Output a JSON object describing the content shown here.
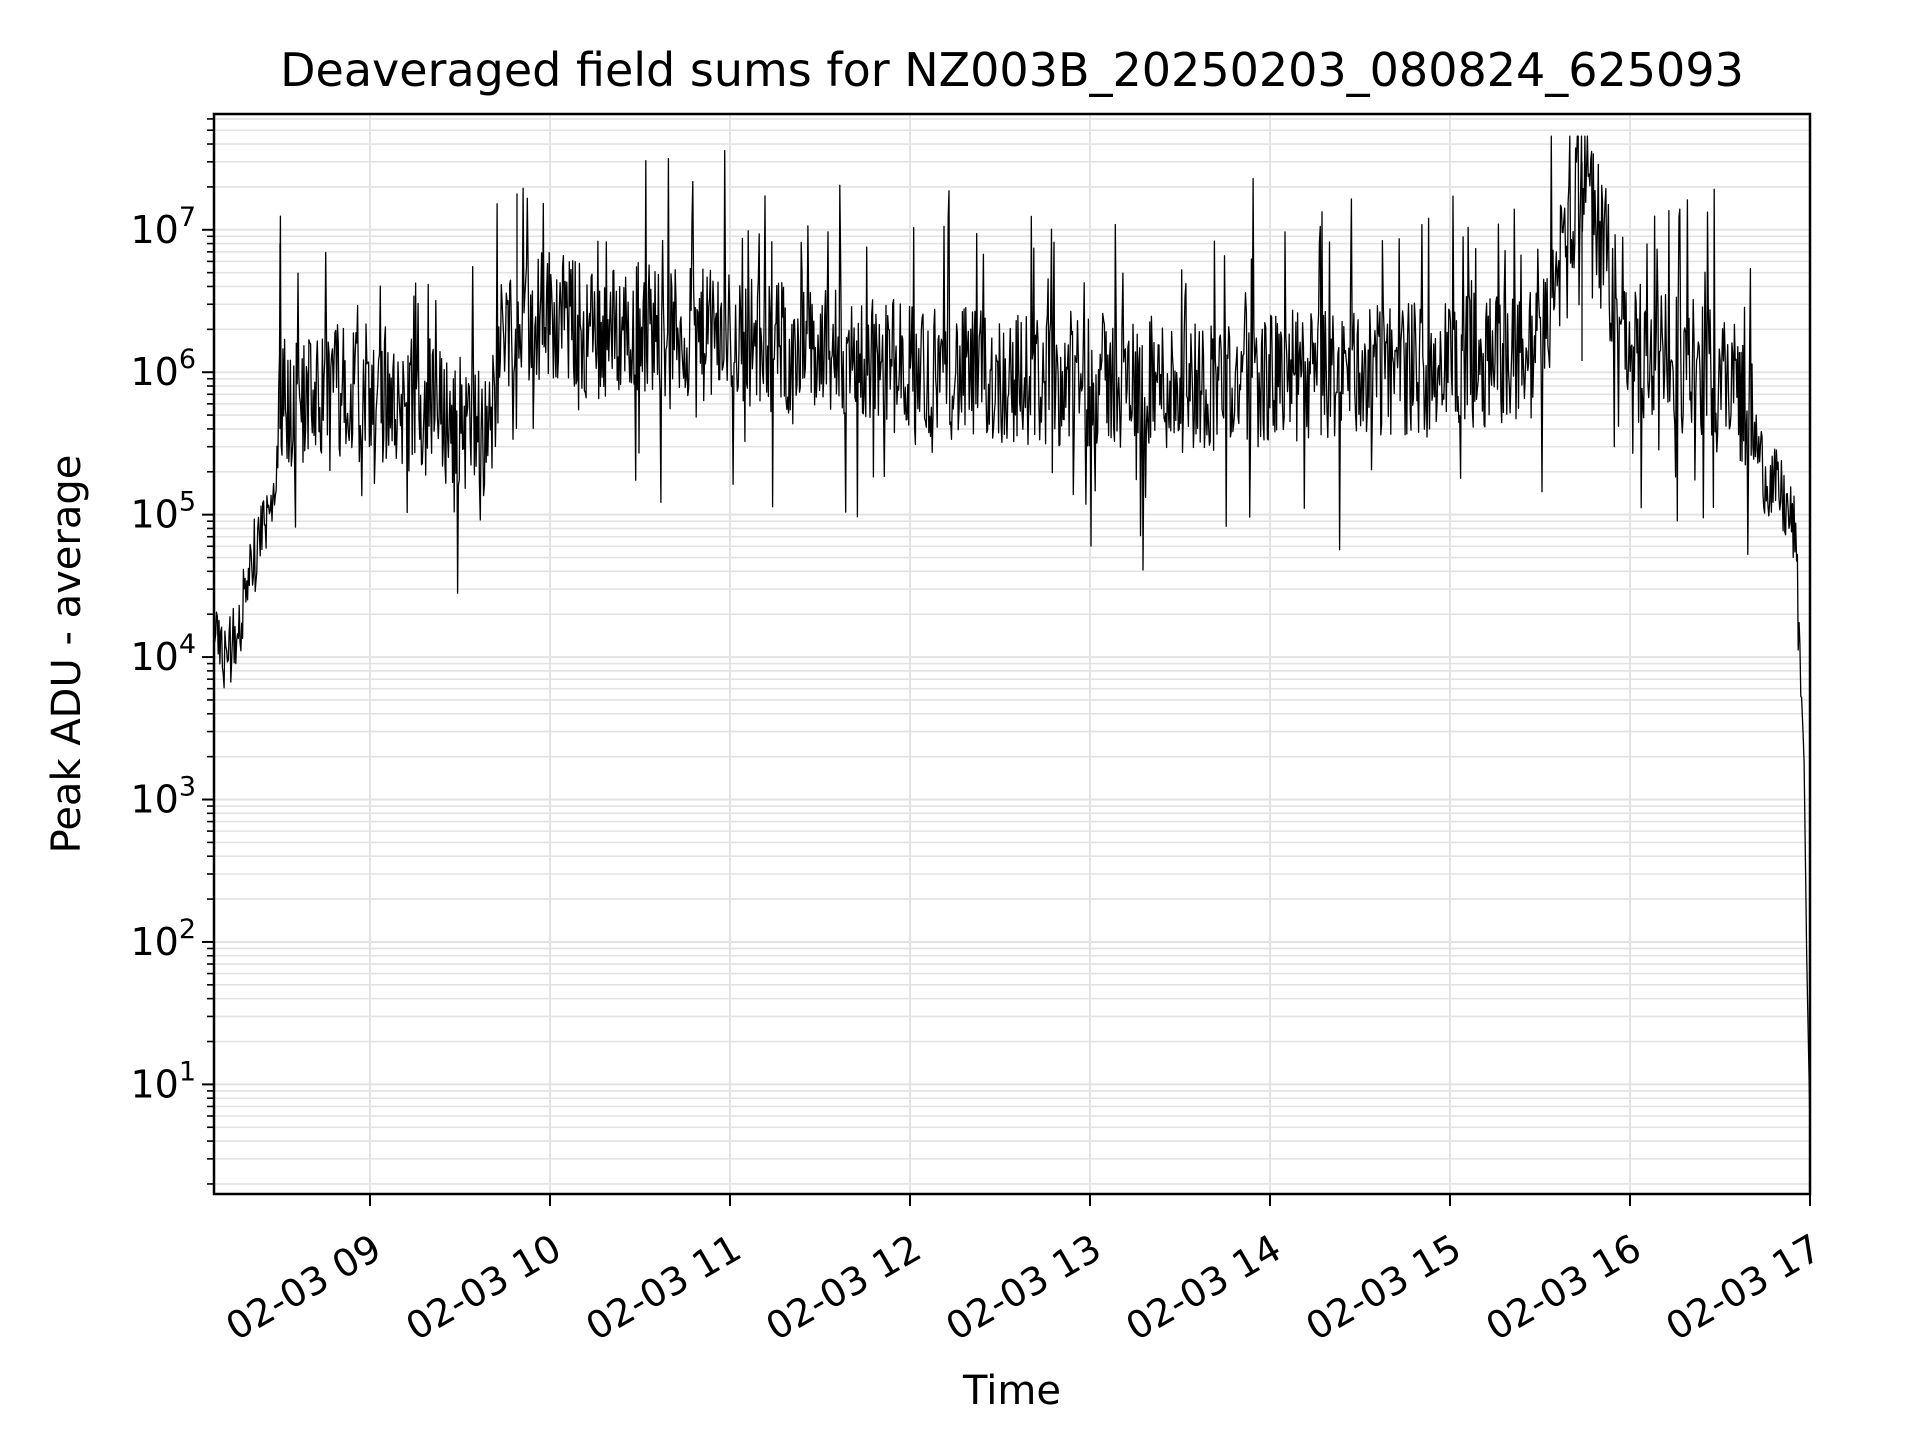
{
  "chart_data": {
    "type": "line",
    "title": "Deaveraged field sums for NZ003B_20250203_080824_625093",
    "xlabel": "Time",
    "ylabel": "Peak ADU - average",
    "yscale": "log",
    "ylim": [
      1.7,
      65000000
    ],
    "xlim": [
      "2025-02-03 08:08",
      "2025-02-03 17:00"
    ],
    "grid": true,
    "grid_color": "#e3e3e3",
    "line_color": "#000000",
    "x_ticks": [
      {
        "time": "2025-02-03 09:00",
        "label": "02-03 09"
      },
      {
        "time": "2025-02-03 10:00",
        "label": "02-03 10"
      },
      {
        "time": "2025-02-03 11:00",
        "label": "02-03 11"
      },
      {
        "time": "2025-02-03 12:00",
        "label": "02-03 12"
      },
      {
        "time": "2025-02-03 13:00",
        "label": "02-03 13"
      },
      {
        "time": "2025-02-03 14:00",
        "label": "02-03 14"
      },
      {
        "time": "2025-02-03 15:00",
        "label": "02-03 15"
      },
      {
        "time": "2025-02-03 16:00",
        "label": "02-03 16"
      },
      {
        "time": "2025-02-03 17:00",
        "label": "02-03 17"
      }
    ],
    "y_ticks": [
      {
        "value": 10,
        "base": "10",
        "exp": "1"
      },
      {
        "value": 100,
        "base": "10",
        "exp": "2"
      },
      {
        "value": 1000,
        "base": "10",
        "exp": "3"
      },
      {
        "value": 10000,
        "base": "10",
        "exp": "4"
      },
      {
        "value": 100000,
        "base": "10",
        "exp": "5"
      },
      {
        "value": 1000000,
        "base": "10",
        "exp": "6"
      },
      {
        "value": 10000000,
        "base": "10",
        "exp": "7"
      }
    ],
    "series": [
      {
        "x": [
          "2025-02-03 08:08",
          "2025-02-03 08:10",
          "2025-02-03 08:12",
          "2025-02-03 08:14",
          "2025-02-03 08:16",
          "2025-02-03 08:18",
          "2025-02-03 08:20",
          "2025-02-03 08:22",
          "2025-02-03 08:24",
          "2025-02-03 08:26",
          "2025-02-03 08:28",
          "2025-02-03 08:30",
          "2025-02-03 08:35",
          "2025-02-03 08:40",
          "2025-02-03 08:45",
          "2025-02-03 08:50",
          "2025-02-03 08:55",
          "2025-02-03 09:00",
          "2025-02-03 09:10",
          "2025-02-03 09:20",
          "2025-02-03 09:30",
          "2025-02-03 09:40",
          "2025-02-03 09:45",
          "2025-02-03 09:48",
          "2025-02-03 09:50",
          "2025-02-03 10:00",
          "2025-02-03 10:15",
          "2025-02-03 10:30",
          "2025-02-03 10:45",
          "2025-02-03 11:00",
          "2025-02-03 11:30",
          "2025-02-03 12:00",
          "2025-02-03 12:30",
          "2025-02-03 13:00",
          "2025-02-03 13:30",
          "2025-02-03 14:00",
          "2025-02-03 14:30",
          "2025-02-03 15:00",
          "2025-02-03 15:30",
          "2025-02-03 15:44",
          "2025-02-03 16:00",
          "2025-02-03 16:20",
          "2025-02-03 16:35",
          "2025-02-03 16:40",
          "2025-02-03 16:45",
          "2025-02-03 16:50",
          "2025-02-03 16:55",
          "2025-02-03 16:58",
          "2025-02-03 16:59",
          "2025-02-03 17:00"
        ],
        "y": [
          20000,
          13000,
          10000,
          12000,
          18000,
          25000,
          40000,
          60000,
          90000,
          120000,
          100000,
          800000,
          700000,
          900000,
          600000,
          800000,
          700000,
          900000,
          700000,
          600000,
          500000,
          400000,
          3000000,
          2000000,
          2500000,
          3000000,
          2000000,
          2500000,
          2000000,
          2000000,
          1500000,
          1200000,
          1000000,
          1000000,
          900000,
          1000000,
          1100000,
          1300000,
          1500000,
          30000000,
          1500000,
          1200000,
          1000000,
          500000,
          200000,
          150000,
          80000,
          2000,
          60,
          5
        ]
      }
    ]
  }
}
